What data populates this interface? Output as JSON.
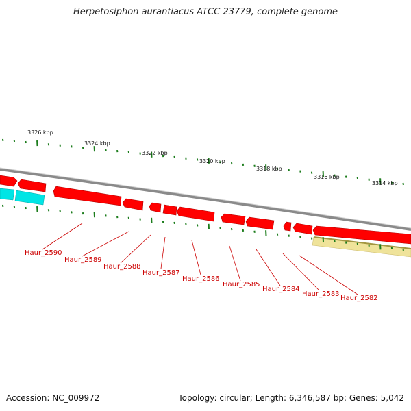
{
  "title": "Herpetosiphon aurantiacus ATCC 23779, complete genome",
  "footer": {
    "accession": "Accession: NC_009972",
    "summary": "Topology: circular; Length: 6,346,587 bp; Genes: 5,042"
  },
  "colors": {
    "backbone": "#8a8a8a",
    "gene_forward": "#ff0000",
    "gene_reverse_cyan": "#00e5e5",
    "feature_yellow": "#efe39a",
    "tick": "#1d7d1d",
    "label": "#cc0000"
  },
  "scale_labels": [
    "3326 kbp",
    "3324 kbp",
    "3322 kbp",
    "3320 kbp",
    "3318 kbp",
    "3316 kbp",
    "3314 kbp"
  ],
  "gene_labels": [
    "Haur_2590",
    "Haur_2589",
    "Haur_2588",
    "Haur_2587",
    "Haur_2586",
    "Haur_2585",
    "Haur_2584",
    "Haur_2583",
    "Haur_2582"
  ]
}
